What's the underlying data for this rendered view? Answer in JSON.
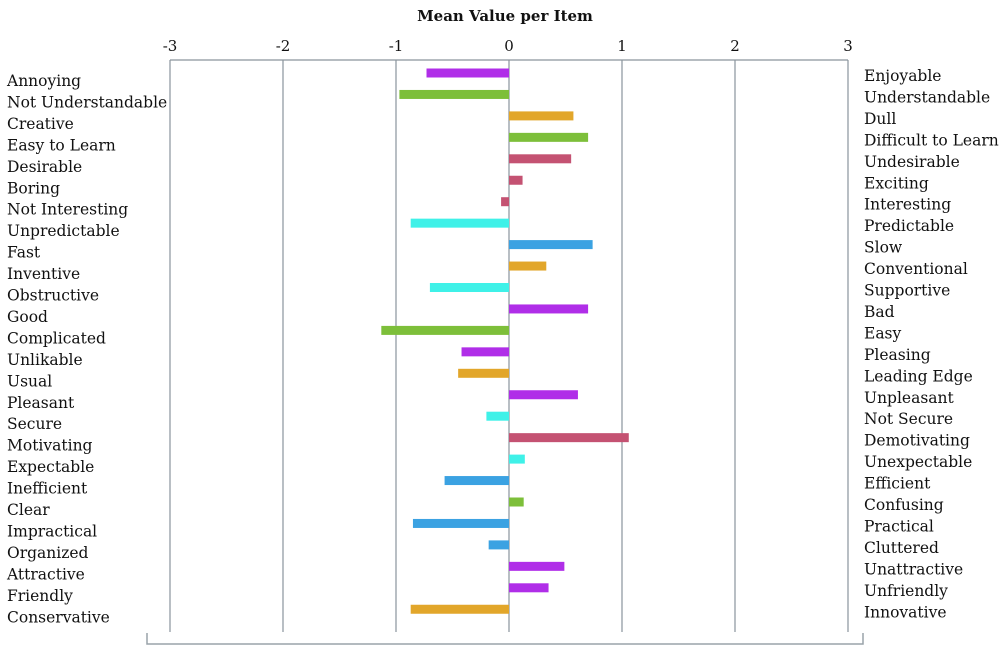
{
  "chart_data": {
    "type": "bar",
    "orientation": "horizontal",
    "title": "Mean Value per Item",
    "xlim": [
      -3,
      3
    ],
    "ticks": [
      "-3",
      "-2",
      "-1",
      "0",
      "1",
      "2",
      "3"
    ],
    "grid": true,
    "legend": "none",
    "left_labels": [
      "Annoying",
      "Not Understandable",
      "Creative",
      "Easy to Learn",
      "Desirable",
      "Boring",
      "Not Interesting",
      "Unpredictable",
      "Fast",
      "Inventive",
      "Obstructive",
      "Good",
      "Complicated",
      "Unlikable",
      "Usual",
      "Pleasant",
      "Secure",
      "Motivating",
      "Expectable",
      "Inefficient",
      "Clear",
      "Impractical",
      "Organized",
      "Attractive",
      "Friendly",
      "Conservative"
    ],
    "right_labels": [
      "Enjoyable",
      "Understandable",
      "Dull",
      "Difficult to Learn",
      "Undesirable",
      "Exciting",
      "Interesting",
      "Predictable",
      "Slow",
      "Conventional",
      "Supportive",
      "Bad",
      "Easy",
      "Pleasing",
      "Leading Edge",
      "Unpleasant",
      "Not Secure",
      "Demotivating",
      "Unexpectable",
      "Efficient",
      "Confusing",
      "Practical",
      "Cluttered",
      "Unattractive",
      "Unfriendly",
      "Innovative"
    ],
    "values": [
      -0.73,
      -0.97,
      0.57,
      0.7,
      0.55,
      0.12,
      -0.07,
      -0.87,
      0.74,
      0.33,
      -0.7,
      0.7,
      -1.13,
      -0.42,
      -0.45,
      0.61,
      -0.2,
      1.06,
      0.14,
      -0.57,
      0.13,
      -0.85,
      -0.18,
      0.49,
      0.35,
      -0.87
    ],
    "colors": [
      "#b02ee8",
      "#7dbf3a",
      "#e2a62a",
      "#7dbf3a",
      "#c45272",
      "#c45272",
      "#c45272",
      "#3ff1e8",
      "#3ba2e2",
      "#e2a62a",
      "#3ff1e8",
      "#b02ee8",
      "#7dbf3a",
      "#b02ee8",
      "#e2a62a",
      "#b02ee8",
      "#3ff1e8",
      "#c45272",
      "#3ff1e8",
      "#3ba2e2",
      "#7dbf3a",
      "#3ba2e2",
      "#3ba2e2",
      "#b02ee8",
      "#b02ee8",
      "#e2a62a"
    ]
  }
}
